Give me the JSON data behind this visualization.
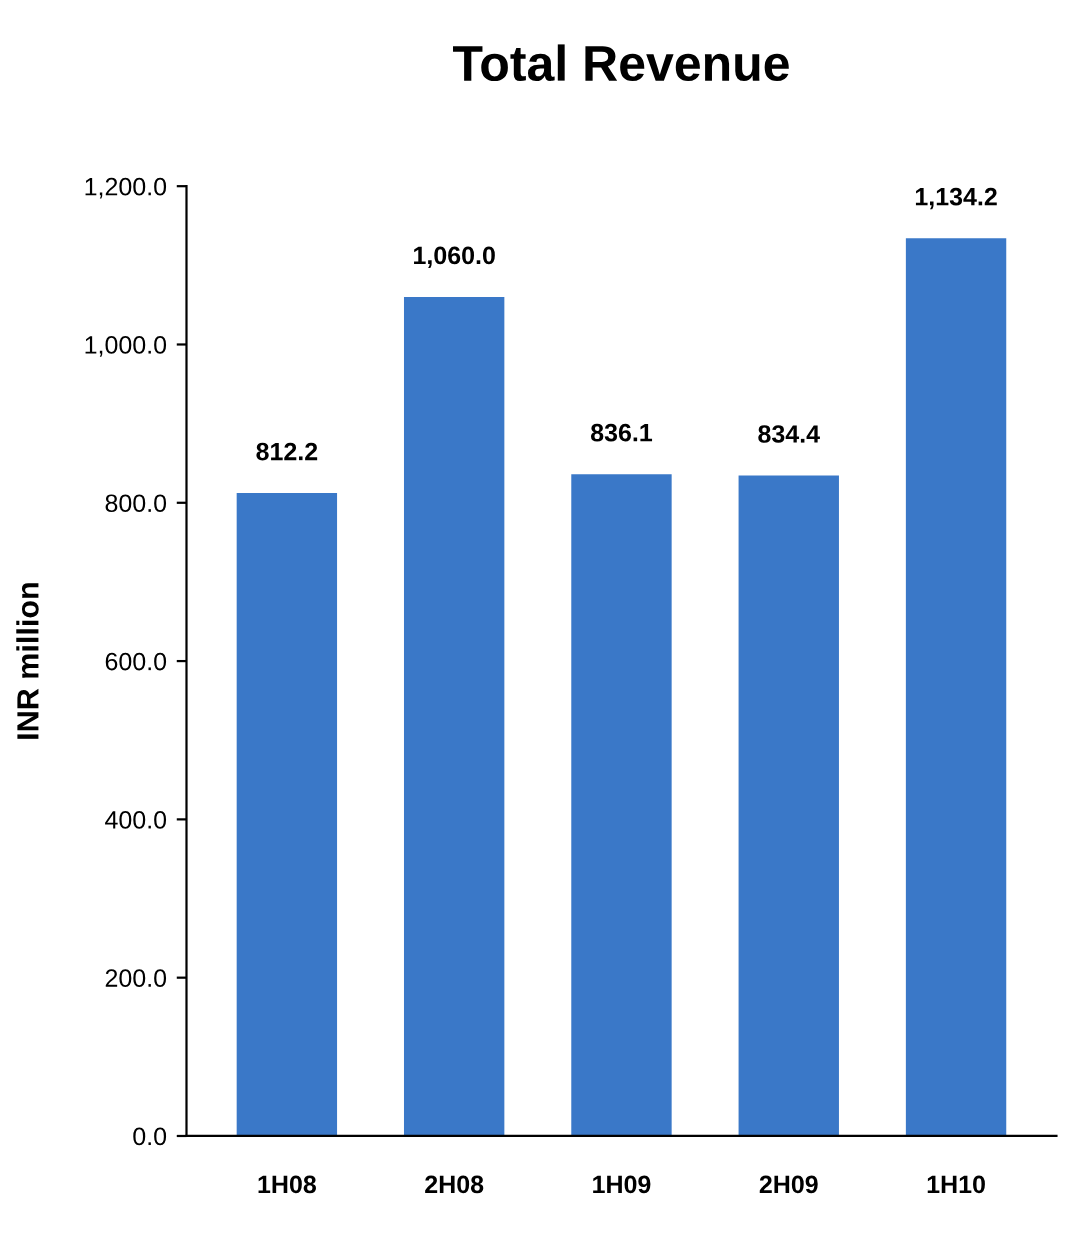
{
  "chart_data": {
    "type": "bar",
    "title": "Total Revenue",
    "ylabel": "INR million",
    "categories": [
      "1H08",
      "2H08",
      "1H09",
      "2H09",
      "1H10"
    ],
    "values": [
      812.2,
      1060.0,
      836.1,
      834.4,
      1134.2
    ],
    "value_labels": [
      "812.2",
      "1,060.0",
      "836.1",
      "834.4",
      "1,134.2"
    ],
    "color": "#3a78c8",
    "ylim": [
      0,
      1200
    ],
    "yticks": [
      {
        "value": 0,
        "label": "0.0"
      },
      {
        "value": 200,
        "label": "200.0"
      },
      {
        "value": 400,
        "label": "400.0"
      },
      {
        "value": 600,
        "label": "600.0"
      },
      {
        "value": 800,
        "label": "800.0"
      },
      {
        "value": 1000,
        "label": "1,000.0"
      },
      {
        "value": 1200,
        "label": "1,200.0"
      }
    ],
    "grid": false,
    "legend": false
  }
}
